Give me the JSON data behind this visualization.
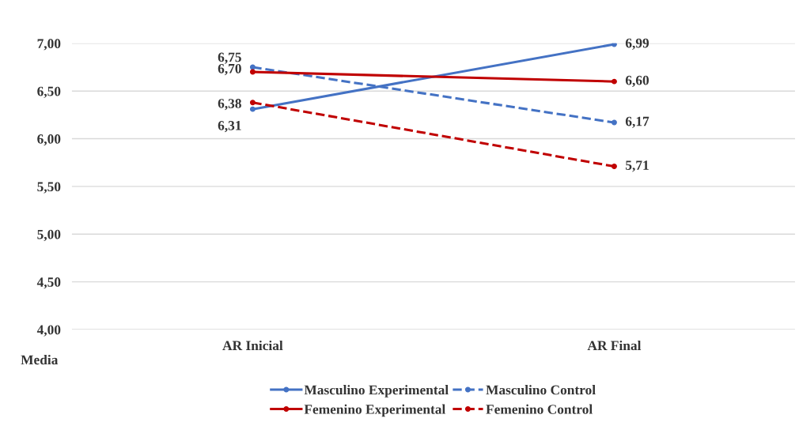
{
  "chart_data": {
    "type": "line",
    "ylabel": "Media",
    "categories": [
      "AR Inicial",
      "AR Final"
    ],
    "series": [
      {
        "name": "Masculino Experimental",
        "color": "#4472c4",
        "values": [
          6.31,
          6.99
        ],
        "value_labels": [
          "6,31",
          "6,99"
        ],
        "line_style": "solid"
      },
      {
        "name": "Masculino Control",
        "color": "#4472c4",
        "values": [
          6.75,
          6.17
        ],
        "value_labels": [
          "6,75",
          "6,17"
        ],
        "line_style": "dashed"
      },
      {
        "name": "Femenino Experimental",
        "color": "#c00000",
        "values": [
          6.7,
          6.6
        ],
        "value_labels": [
          "6,70",
          "6,60"
        ],
        "line_style": "solid"
      },
      {
        "name": "Femenino Control",
        "color": "#c00000",
        "values": [
          6.38,
          5.71
        ],
        "value_labels": [
          "6,38",
          "5,71"
        ],
        "line_style": "dashed"
      }
    ],
    "ylim": [
      4.0,
      7.0
    ],
    "yticks": [
      {
        "value": 4.0,
        "label": "4,00"
      },
      {
        "value": 4.5,
        "label": "4,50"
      },
      {
        "value": 5.0,
        "label": "5,00"
      },
      {
        "value": 5.5,
        "label": "5,50"
      },
      {
        "value": 6.0,
        "label": "6,00"
      },
      {
        "value": 6.5,
        "label": "6,50"
      },
      {
        "value": 7.0,
        "label": "7,00"
      }
    ],
    "grid": "y",
    "legend": "bottom",
    "marker": "circle"
  }
}
